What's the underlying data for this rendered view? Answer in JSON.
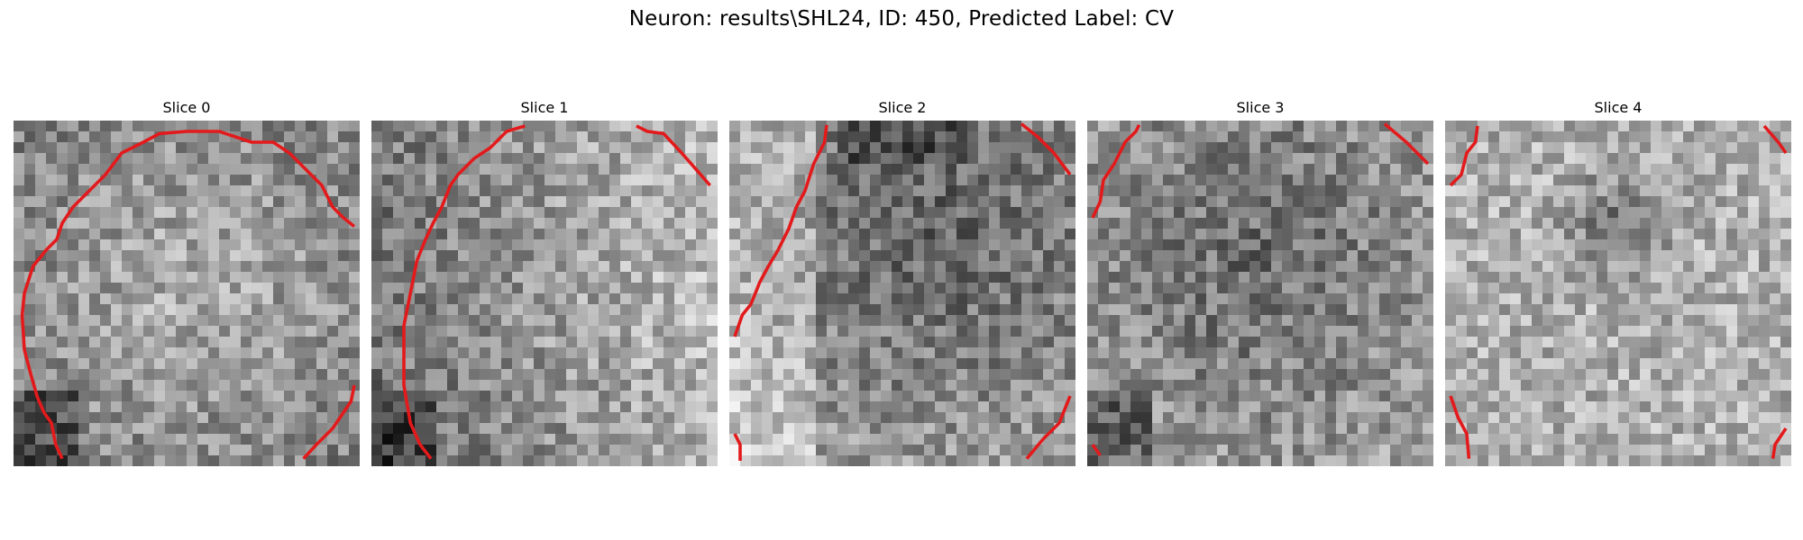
{
  "figure": {
    "title": "Neuron: results\\SHL24, ID: 450, Predicted Label: CV",
    "overlay_color": "#e31a1c",
    "colormap": "grayscale"
  },
  "slices": [
    {
      "label": "Slice 0",
      "seed": 11,
      "bias": "bright-center",
      "dark_corner": "bottom-left"
    },
    {
      "label": "Slice 1",
      "seed": 23,
      "bias": "bright-right",
      "dark_corner": "bottom-left"
    },
    {
      "label": "Slice 2",
      "seed": 37,
      "bias": "dark-center-right",
      "dark_corner": "top-center"
    },
    {
      "label": "Slice 3",
      "seed": 41,
      "bias": "dark-center",
      "dark_corner": "bottom-left"
    },
    {
      "label": "Slice 4",
      "seed": 53,
      "bias": "dark-spot",
      "dark_corner": "none"
    }
  ]
}
